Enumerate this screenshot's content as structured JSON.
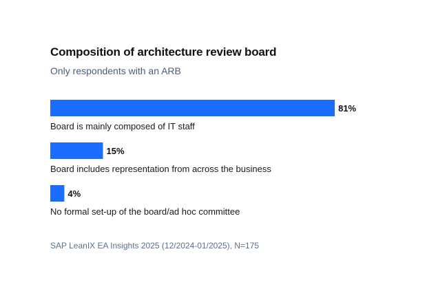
{
  "chart_data": {
    "type": "bar",
    "orientation": "horizontal",
    "title": "Composition of architecture review board",
    "subtitle": "Only respondents with an ARB",
    "source": "SAP LeanIX EA Insights 2025 (12/2024-01/2025), N=175",
    "categories": [
      "Board is mainly composed of IT staff",
      "Board includes representation from across the business",
      "No formal set-up of the board/ad hoc committee"
    ],
    "values": [
      81,
      15,
      4
    ],
    "value_labels": [
      "81%",
      "15%",
      "4%"
    ],
    "unit": "%",
    "xlim": [
      0,
      100
    ],
    "grid": false,
    "legend": "none",
    "bar_color": "#1a6dff"
  }
}
